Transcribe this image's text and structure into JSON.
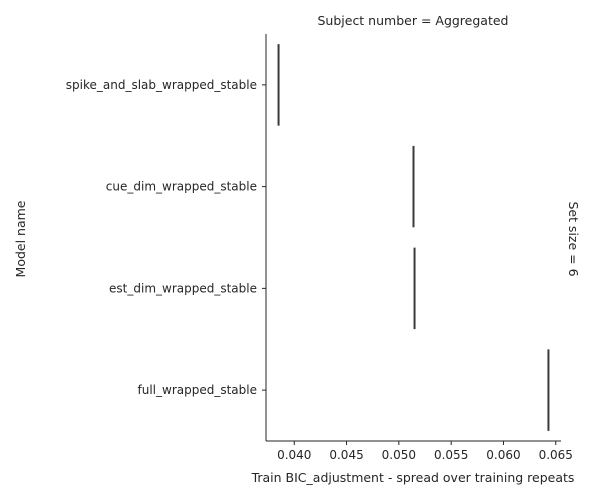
{
  "chart_data": {
    "type": "bar",
    "facet_title": "Subject number = Aggregated",
    "row_title": "Set size = 6",
    "xlabel": "Train BIC_adjustment - spread over training repeats",
    "ylabel": "Model name",
    "xlim": [
      0.0373,
      0.0655
    ],
    "xticks": [
      0.04,
      0.045,
      0.05,
      0.055,
      0.06,
      0.065
    ],
    "xtick_labels": [
      "0.040",
      "0.045",
      "0.050",
      "0.055",
      "0.060",
      "0.065"
    ],
    "categories": [
      "spike_and_slab_wrapped_stable",
      "cue_dim_wrapped_stable",
      "est_dim_wrapped_stable",
      "full_wrapped_stable"
    ],
    "values": [
      0.0385,
      0.0514,
      0.0515,
      0.0643
    ],
    "mark_color": "#3a3a3a",
    "grid": false
  }
}
